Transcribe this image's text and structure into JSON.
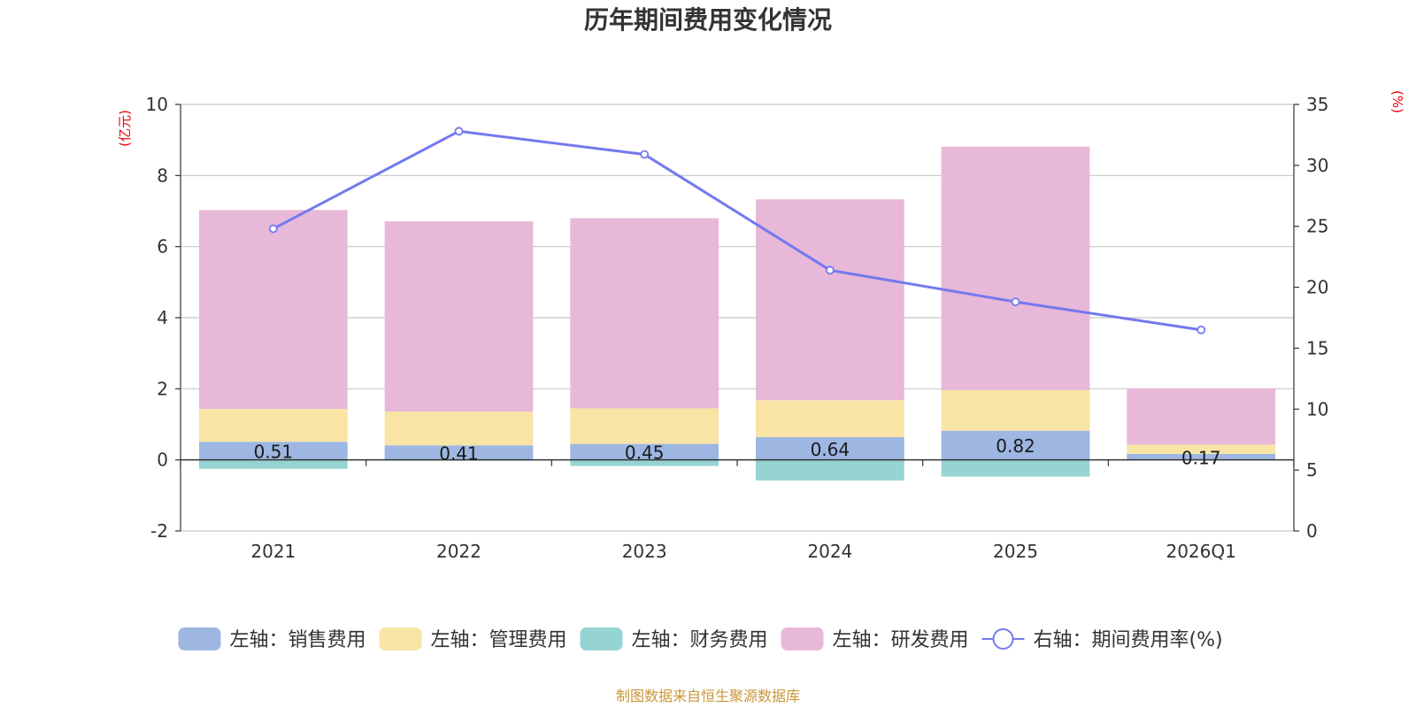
{
  "chart_data": {
    "type": "bar",
    "title": "历年期间费用变化情况",
    "categories": [
      "2021",
      "2022",
      "2023",
      "2024",
      "2025",
      "2026Q1"
    ],
    "left_axis": {
      "unit_label": "(亿元)",
      "ylim": [
        -2,
        10
      ],
      "ticks": [
        -2,
        0,
        2,
        4,
        6,
        8,
        10
      ]
    },
    "right_axis": {
      "unit_label": "(%)",
      "ylim": [
        0,
        35
      ],
      "ticks": [
        0,
        5,
        10,
        15,
        20,
        25,
        30,
        35
      ]
    },
    "series": [
      {
        "name": "左轴：销售费用",
        "axis": "left",
        "kind": "bar",
        "color": "#9db6e2",
        "values": [
          0.51,
          0.41,
          0.45,
          0.64,
          0.82,
          0.17
        ],
        "labels": [
          "0.51",
          "0.41",
          "0.45",
          "0.64",
          "0.82",
          "0.17"
        ]
      },
      {
        "name": "左轴：管理费用",
        "axis": "left",
        "kind": "bar",
        "color": "#f8e5a6",
        "values": [
          0.92,
          0.95,
          1.0,
          1.04,
          1.14,
          0.26
        ]
      },
      {
        "name": "左轴：财务费用",
        "axis": "left",
        "kind": "bar",
        "color": "#96d4d3",
        "values": [
          -0.25,
          -0.02,
          -0.17,
          -0.58,
          -0.47,
          -0.01
        ]
      },
      {
        "name": "左轴：研发费用",
        "axis": "left",
        "kind": "bar",
        "color": "#e8b8d9",
        "values": [
          5.6,
          5.35,
          5.35,
          5.65,
          6.85,
          1.58
        ]
      },
      {
        "name": "右轴：期间费用率(%)",
        "axis": "right",
        "kind": "line",
        "color": "#7479ef",
        "values": [
          24.8,
          32.8,
          30.9,
          21.4,
          18.8,
          16.5
        ]
      }
    ],
    "grid": true,
    "legend": "bottom"
  },
  "source": "制图数据来自恒生聚源数据库"
}
